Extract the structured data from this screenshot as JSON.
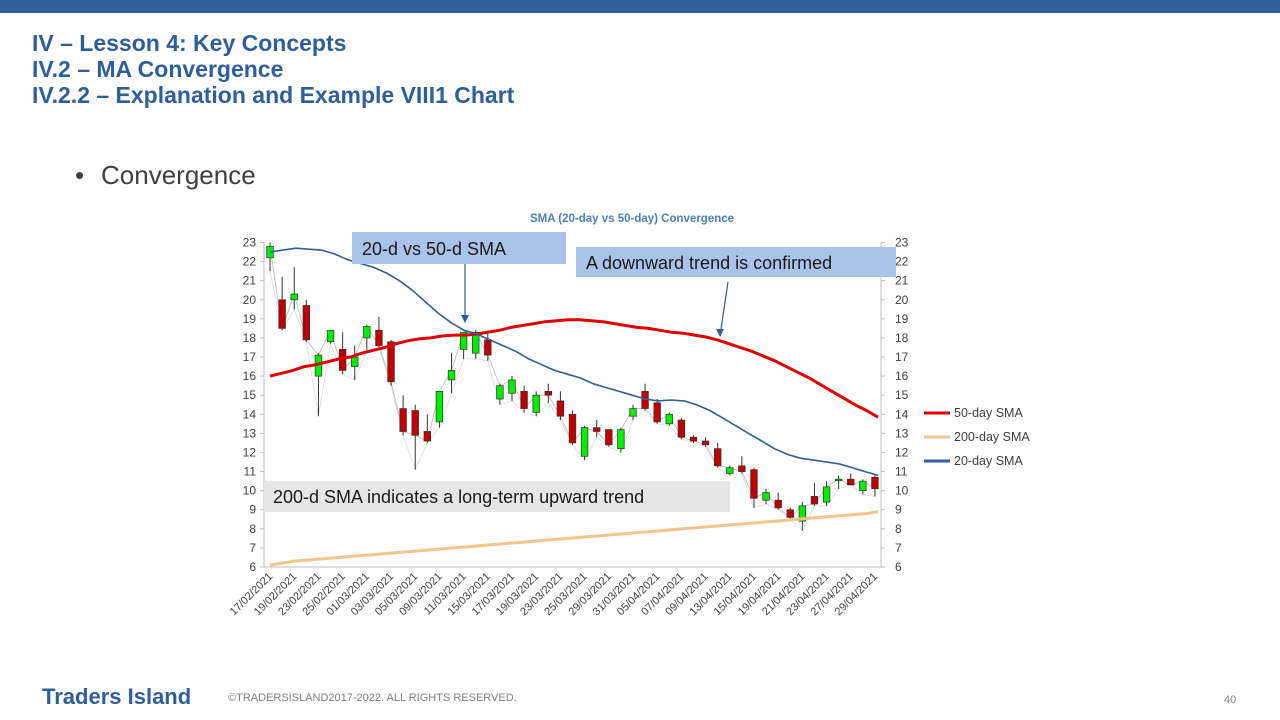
{
  "header": {
    "title_line1": "IV – Lesson 4: Key Concepts",
    "title_line2": "IV.2 – MA Convergence",
    "title_line3": "IV.2.2 – Explanation and Example VIII1 Chart"
  },
  "bullet": {
    "symbol": "•",
    "text": "Convergence"
  },
  "footer": {
    "brand": "Traders Island",
    "copyright": "©TRADERSISLAND2017-2022. ALL RIGHTS RESERVED.",
    "page": "40"
  },
  "colors": {
    "accent": "#2e5e9c",
    "up_candle": "#00ee00",
    "down_candle": "#c00000",
    "sma50": "#e00000",
    "sma200": "#f5c58a",
    "sma20": "#2e5e9c",
    "callout_blue": "#a9c4e8",
    "callout_gray": "#e6e6e6"
  },
  "chart_data": {
    "type": "candlestick",
    "title": "SMA (20-day vs 50-day) Convergence",
    "ylim": [
      6,
      23
    ],
    "yticks": [
      6,
      7,
      8,
      9,
      10,
      11,
      12,
      13,
      14,
      15,
      16,
      17,
      18,
      19,
      20,
      21,
      22,
      23
    ],
    "secondary_y": true,
    "legend_position": "right",
    "x_tick_labels": [
      "17/02/2021",
      "19/02/2021",
      "23/02/2021",
      "25/02/2021",
      "01/03/2021",
      "03/03/2021",
      "05/03/2021",
      "09/03/2021",
      "11/03/2021",
      "15/03/2021",
      "17/03/2021",
      "19/03/2021",
      "23/03/2021",
      "25/03/2021",
      "29/03/2021",
      "31/03/2021",
      "05/04/2021",
      "07/04/2021",
      "09/04/2021",
      "13/04/2021",
      "15/04/2021",
      "19/04/2021",
      "21/04/2021",
      "23/04/2021",
      "27/04/2021",
      "29/04/2021"
    ],
    "candles": [
      {
        "o": 22.2,
        "h": 23.0,
        "l": 21.5,
        "c": 22.8
      },
      {
        "o": 20.0,
        "h": 21.2,
        "l": 18.4,
        "c": 18.5
      },
      {
        "o": 20.0,
        "h": 21.7,
        "l": 19.5,
        "c": 20.3
      },
      {
        "o": 19.7,
        "h": 20.0,
        "l": 17.8,
        "c": 17.9
      },
      {
        "o": 16.0,
        "h": 17.2,
        "l": 13.9,
        "c": 17.1
      },
      {
        "o": 17.8,
        "h": 18.3,
        "l": 17.7,
        "c": 18.4
      },
      {
        "o": 17.4,
        "h": 18.3,
        "l": 16.1,
        "c": 16.3
      },
      {
        "o": 16.5,
        "h": 17.6,
        "l": 15.8,
        "c": 17.0
      },
      {
        "o": 18.0,
        "h": 18.7,
        "l": 17.3,
        "c": 18.6
      },
      {
        "o": 18.4,
        "h": 19.1,
        "l": 17.5,
        "c": 17.6
      },
      {
        "o": 17.8,
        "h": 17.9,
        "l": 15.5,
        "c": 15.7
      },
      {
        "o": 14.3,
        "h": 15.0,
        "l": 12.9,
        "c": 13.1
      },
      {
        "o": 14.2,
        "h": 14.5,
        "l": 11.1,
        "c": 12.9
      },
      {
        "o": 13.1,
        "h": 14.0,
        "l": 12.5,
        "c": 12.6
      },
      {
        "o": 13.6,
        "h": 15.2,
        "l": 13.3,
        "c": 15.2
      },
      {
        "o": 15.8,
        "h": 17.2,
        "l": 15.1,
        "c": 16.3
      },
      {
        "o": 17.4,
        "h": 18.2,
        "l": 16.9,
        "c": 18.3
      },
      {
        "o": 17.2,
        "h": 18.4,
        "l": 16.9,
        "c": 18.3
      },
      {
        "o": 17.9,
        "h": 18.4,
        "l": 16.8,
        "c": 17.1
      },
      {
        "o": 14.8,
        "h": 15.6,
        "l": 14.5,
        "c": 15.5
      },
      {
        "o": 15.1,
        "h": 16.0,
        "l": 14.7,
        "c": 15.8
      },
      {
        "o": 15.2,
        "h": 15.5,
        "l": 14.1,
        "c": 14.3
      },
      {
        "o": 14.1,
        "h": 15.2,
        "l": 13.9,
        "c": 15.0
      },
      {
        "o": 15.2,
        "h": 15.6,
        "l": 14.6,
        "c": 15.0
      },
      {
        "o": 14.7,
        "h": 15.2,
        "l": 13.7,
        "c": 13.9
      },
      {
        "o": 14.0,
        "h": 14.2,
        "l": 12.4,
        "c": 12.5
      },
      {
        "o": 11.8,
        "h": 13.4,
        "l": 11.6,
        "c": 13.3
      },
      {
        "o": 13.3,
        "h": 13.7,
        "l": 12.8,
        "c": 13.1
      },
      {
        "o": 13.2,
        "h": 13.2,
        "l": 12.3,
        "c": 12.4
      },
      {
        "o": 12.2,
        "h": 13.3,
        "l": 12.0,
        "c": 13.2
      },
      {
        "o": 13.9,
        "h": 14.5,
        "l": 13.7,
        "c": 14.3
      },
      {
        "o": 15.2,
        "h": 15.6,
        "l": 14.2,
        "c": 14.3
      },
      {
        "o": 14.6,
        "h": 14.8,
        "l": 13.5,
        "c": 13.6
      },
      {
        "o": 13.5,
        "h": 14.1,
        "l": 13.4,
        "c": 14.0
      },
      {
        "o": 13.7,
        "h": 13.8,
        "l": 12.7,
        "c": 12.8
      },
      {
        "o": 12.8,
        "h": 12.9,
        "l": 12.5,
        "c": 12.6
      },
      {
        "o": 12.6,
        "h": 12.8,
        "l": 12.3,
        "c": 12.4
      },
      {
        "o": 12.2,
        "h": 12.5,
        "l": 11.2,
        "c": 11.3
      },
      {
        "o": 10.9,
        "h": 11.3,
        "l": 10.8,
        "c": 11.2
      },
      {
        "o": 11.3,
        "h": 11.8,
        "l": 10.9,
        "c": 11.0
      },
      {
        "o": 11.1,
        "h": 11.2,
        "l": 9.1,
        "c": 9.6
      },
      {
        "o": 9.5,
        "h": 10.1,
        "l": 9.3,
        "c": 9.9
      },
      {
        "o": 9.5,
        "h": 9.9,
        "l": 9.0,
        "c": 9.1
      },
      {
        "o": 9.0,
        "h": 9.1,
        "l": 8.5,
        "c": 8.6
      },
      {
        "o": 8.4,
        "h": 9.4,
        "l": 7.9,
        "c": 9.2
      },
      {
        "o": 9.7,
        "h": 10.4,
        "l": 9.2,
        "c": 9.3
      },
      {
        "o": 9.4,
        "h": 10.5,
        "l": 9.2,
        "c": 10.2
      },
      {
        "o": 10.6,
        "h": 10.8,
        "l": 10.1,
        "c": 10.6
      },
      {
        "o": 10.6,
        "h": 10.9,
        "l": 10.3,
        "c": 10.3
      },
      {
        "o": 10.0,
        "h": 10.6,
        "l": 9.8,
        "c": 10.5
      },
      {
        "o": 10.7,
        "h": 10.8,
        "l": 9.7,
        "c": 10.1
      }
    ],
    "series": [
      {
        "name": "50-day SMA",
        "color": "#e00000",
        "values": [
          16.0,
          16.15,
          16.3,
          16.5,
          16.6,
          16.75,
          16.9,
          17.0,
          17.2,
          17.35,
          17.5,
          17.7,
          17.85,
          17.95,
          18.0,
          18.1,
          18.15,
          18.15,
          18.2,
          18.3,
          18.4,
          18.55,
          18.65,
          18.75,
          18.85,
          18.9,
          18.95,
          18.95,
          18.9,
          18.85,
          18.75,
          18.65,
          18.55,
          18.5,
          18.4,
          18.3,
          18.25,
          18.15,
          18.05,
          17.9,
          17.7,
          17.5,
          17.3,
          17.05,
          16.8,
          16.5,
          16.2,
          15.9,
          15.55,
          15.2,
          14.85,
          14.5,
          14.2,
          13.85
        ]
      },
      {
        "name": "200-day SMA",
        "color": "#f5c58a",
        "values": [
          6.1,
          6.2,
          6.3,
          6.35,
          6.4,
          6.45,
          6.5,
          6.55,
          6.6,
          6.65,
          6.7,
          6.75,
          6.8,
          6.85,
          6.9,
          6.95,
          7.0,
          7.05,
          7.1,
          7.15,
          7.2,
          7.25,
          7.3,
          7.35,
          7.4,
          7.45,
          7.5,
          7.55,
          7.6,
          7.65,
          7.7,
          7.75,
          7.8,
          7.85,
          7.9,
          7.95,
          8.0,
          8.05,
          8.1,
          8.15,
          8.2,
          8.25,
          8.3,
          8.35,
          8.4,
          8.45,
          8.5,
          8.55,
          8.6,
          8.65,
          8.7,
          8.75,
          8.8,
          8.9
        ]
      },
      {
        "name": "20-day SMA",
        "color": "#2e5e9c",
        "values": [
          22.5,
          22.6,
          22.7,
          22.65,
          22.6,
          22.4,
          22.1,
          21.9,
          21.7,
          21.4,
          21.0,
          20.5,
          19.9,
          19.3,
          18.8,
          18.4,
          18.2,
          17.9,
          17.6,
          17.3,
          16.9,
          16.6,
          16.3,
          16.1,
          15.9,
          15.6,
          15.4,
          15.2,
          15.0,
          14.8,
          14.7,
          14.75,
          14.7,
          14.5,
          14.2,
          13.8,
          13.4,
          13.0,
          12.6,
          12.2,
          11.9,
          11.7,
          11.6,
          11.5,
          11.4,
          11.2,
          11.0,
          10.8
        ]
      }
    ],
    "annotations": [
      {
        "text": "20-d vs 50-d SMA"
      },
      {
        "text": "A downward trend is confirmed"
      },
      {
        "text": "200-d SMA indicates a long-term upward trend"
      }
    ]
  }
}
